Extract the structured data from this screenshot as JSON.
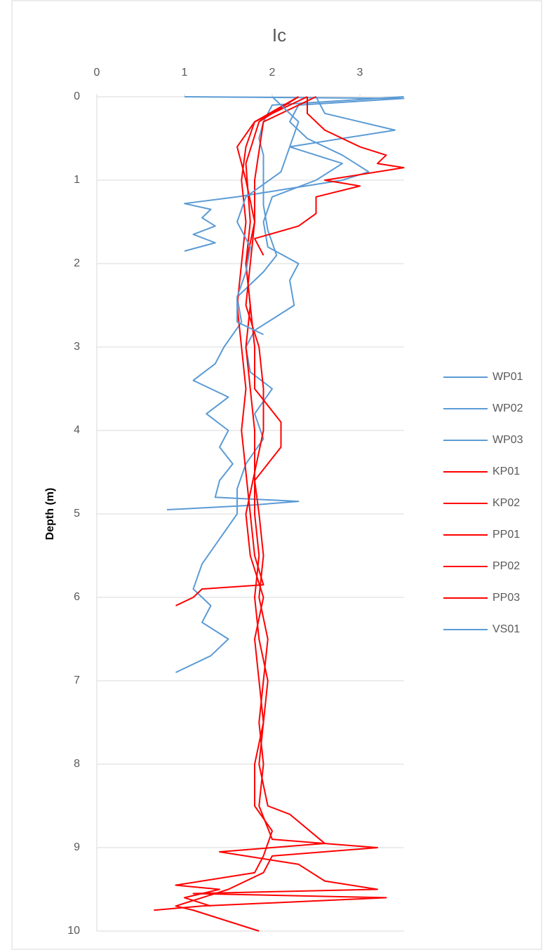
{
  "chart_data": {
    "type": "line",
    "title": "Ic",
    "y_label": "Depth (m)",
    "xlim": [
      0,
      3.5
    ],
    "xticks": [
      0,
      1,
      2,
      3
    ],
    "ylim": [
      0,
      10
    ],
    "yticks": [
      0,
      1,
      2,
      3,
      4,
      5,
      6,
      7,
      8,
      9,
      10
    ],
    "y_inverted": true,
    "grid": true,
    "legend": "right",
    "series": [
      {
        "name": "WP01",
        "color": "#5b9bd5",
        "values": [
          1.0,
          3.5,
          2.3,
          2.2,
          2.4,
          2.8,
          3.1,
          2.8,
          2.2,
          1.6,
          1.0,
          1.3,
          1.2,
          1.35,
          1.1,
          1.35,
          1.0
        ],
        "depth": [
          0,
          0.02,
          0.1,
          0.3,
          0.5,
          0.7,
          0.9,
          1.0,
          1.1,
          1.2,
          1.28,
          1.35,
          1.45,
          1.55,
          1.65,
          1.75,
          1.85
        ]
      },
      {
        "name": "WP02",
        "color": "#5b9bd5",
        "values": [
          3.5,
          2.0,
          1.9,
          1.85,
          1.9,
          1.9,
          1.9,
          1.95,
          2.05,
          1.9,
          1.6,
          1.65,
          1.45,
          1.35,
          1.1,
          1.5,
          1.25,
          1.5,
          1.4,
          1.55,
          1.4,
          1.35,
          2.3,
          1.7,
          0.8
        ],
        "depth": [
          0,
          0.1,
          0.3,
          0.5,
          0.7,
          1.0,
          1.3,
          1.6,
          1.9,
          2.1,
          2.4,
          2.7,
          3.0,
          3.2,
          3.4,
          3.6,
          3.8,
          4.0,
          4.2,
          4.4,
          4.6,
          4.8,
          4.85,
          4.9,
          4.95
        ]
      },
      {
        "name": "WP03",
        "color": "#5b9bd5",
        "values": [
          2.5,
          2.6,
          3.4,
          2.2,
          2.8,
          2.5,
          2.0,
          1.9,
          1.95,
          2.3,
          2.2,
          2.25,
          1.8,
          1.7,
          1.75,
          2.0,
          1.8,
          1.9,
          1.7,
          1.6,
          1.6,
          1.4,
          1.2,
          1.1,
          1.3,
          1.2,
          1.5,
          1.3,
          0.9
        ],
        "depth": [
          0,
          0.2,
          0.4,
          0.6,
          0.8,
          1.0,
          1.2,
          1.5,
          1.8,
          2.0,
          2.2,
          2.5,
          2.8,
          3.0,
          3.3,
          3.5,
          3.8,
          4.1,
          4.4,
          4.7,
          5.0,
          5.3,
          5.6,
          5.9,
          6.1,
          6.3,
          6.5,
          6.7,
          6.9
        ]
      },
      {
        "name": "KP01",
        "color": "#ff0000",
        "values": [
          2.4,
          2.4,
          2.6,
          3.0,
          3.3,
          3.2,
          3.5,
          2.6,
          3.0,
          2.5,
          2.5,
          2.3,
          1.8,
          1.9
        ],
        "depth": [
          0,
          0.2,
          0.4,
          0.6,
          0.7,
          0.8,
          0.85,
          1.0,
          1.07,
          1.2,
          1.4,
          1.55,
          1.7,
          1.9
        ]
      },
      {
        "name": "KP02",
        "color": "#ff0000",
        "values": [
          2.3,
          1.8,
          1.7,
          1.65,
          1.7,
          1.65,
          1.6,
          1.65,
          1.7,
          1.65,
          1.7,
          1.75,
          1.8,
          1.9,
          1.2,
          1.1,
          0.9
        ],
        "depth": [
          0,
          0.3,
          0.6,
          1.0,
          1.5,
          2.0,
          2.5,
          3.0,
          3.5,
          4.0,
          4.5,
          5.0,
          5.5,
          5.85,
          5.9,
          6.0,
          6.1
        ]
      },
      {
        "name": "PP01",
        "color": "#ff0000",
        "values": [
          2.3,
          1.85,
          1.7,
          1.75,
          1.7,
          1.75,
          1.8,
          1.8,
          2.1,
          2.1,
          1.8,
          1.85,
          1.9,
          1.85,
          1.95,
          1.9,
          1.85,
          1.9,
          1.85,
          2.0,
          3.2,
          2.0,
          1.9,
          1.5,
          1.2,
          0.9,
          1.1,
          1.85
        ],
        "depth": [
          0,
          0.3,
          0.8,
          1.5,
          2.0,
          2.5,
          3.0,
          3.5,
          3.9,
          4.2,
          4.6,
          5.0,
          5.5,
          6.0,
          6.5,
          7.0,
          7.5,
          8.0,
          8.5,
          8.9,
          9.0,
          9.1,
          9.3,
          9.5,
          9.6,
          9.7,
          9.75,
          10.0
        ]
      },
      {
        "name": "PP02",
        "color": "#ff0000",
        "values": [
          2.5,
          1.9,
          1.8,
          1.8,
          1.75,
          1.7,
          1.85,
          1.9,
          1.9,
          1.8,
          1.8,
          1.85,
          1.8,
          1.85,
          1.95,
          1.9,
          1.85,
          1.95,
          2.2,
          2.6,
          1.4,
          2.3,
          2.6,
          3.2,
          1.1,
          3.3,
          1.2,
          0.65
        ],
        "depth": [
          0,
          0.3,
          1.0,
          1.5,
          2.0,
          2.5,
          3.0,
          3.5,
          4.0,
          4.5,
          5.0,
          5.5,
          6.0,
          6.5,
          7.0,
          7.5,
          8.0,
          8.5,
          8.6,
          8.95,
          9.05,
          9.2,
          9.4,
          9.5,
          9.55,
          9.6,
          9.7,
          9.75
        ]
      },
      {
        "name": "PP03",
        "color": "#ff0000",
        "values": [
          2.4,
          1.8,
          1.6,
          1.7,
          1.8,
          1.7,
          1.75,
          1.7,
          1.75,
          1.8,
          1.8,
          1.7,
          1.75,
          1.9,
          1.8,
          1.85,
          1.9,
          1.8,
          1.8,
          2.0,
          1.9,
          1.8,
          0.9,
          1.4,
          1.0,
          1.3
        ],
        "depth": [
          0,
          0.3,
          0.6,
          1.0,
          1.5,
          2.0,
          2.5,
          3.0,
          3.5,
          4.0,
          4.5,
          5.0,
          5.5,
          6.0,
          6.5,
          7.0,
          7.5,
          8.0,
          8.5,
          8.8,
          9.1,
          9.3,
          9.45,
          9.5,
          9.6,
          9.7
        ]
      },
      {
        "name": "VS01",
        "color": "#5b9bd5",
        "values": [
          2.0,
          2.3,
          2.2,
          2.1,
          1.7,
          1.6,
          1.75,
          1.7,
          1.6,
          1.6,
          1.9
        ],
        "depth": [
          0,
          0.3,
          0.6,
          0.9,
          1.2,
          1.5,
          1.8,
          2.1,
          2.4,
          2.7,
          2.85
        ]
      }
    ]
  }
}
